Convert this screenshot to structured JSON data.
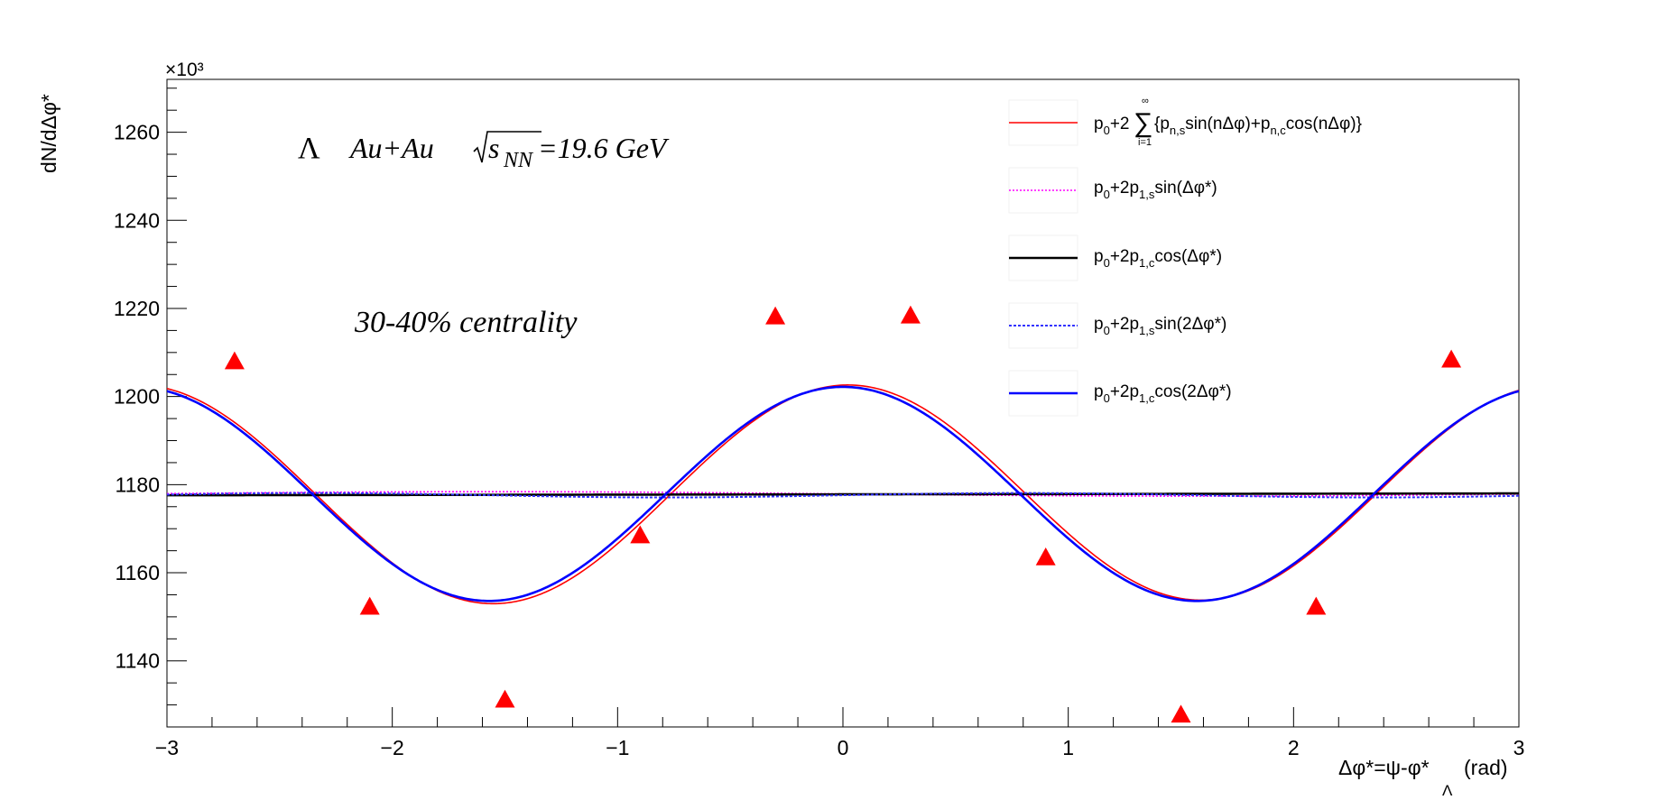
{
  "chart_data": {
    "type": "line",
    "title": "",
    "ylabel": "dN/dΔφ*",
    "xlabel": {
      "main": "Δφ*=ψ-φ*",
      "sub": "Λ",
      "unit": "(rad)"
    },
    "y_multiplier": "×10³",
    "xlim": [
      -3,
      3
    ],
    "ylim": [
      1125,
      1272
    ],
    "x_ticks": [
      -3,
      -2,
      -1,
      0,
      1,
      2,
      3
    ],
    "x_tick_labels": [
      "−3",
      "−2",
      "−1",
      "0",
      "1",
      "2",
      "3"
    ],
    "y_ticks": [
      1140,
      1160,
      1180,
      1200,
      1220,
      1240,
      1260
    ],
    "y_tick_labels": [
      "1140",
      "1160",
      "1180",
      "1200",
      "1220",
      "1240",
      "1260"
    ],
    "grid": false,
    "legend_position": "top-right",
    "annotations": {
      "system": {
        "particle": "Λ",
        "collision": "Au+Au",
        "energy_sym": "s",
        "energy_sub": "NN",
        "energy_val": "=19.6 GeV"
      },
      "centrality": "30-40% centrality"
    },
    "data_points": {
      "name": "",
      "color": "#ff0000",
      "marker": "triangle-up",
      "x": [
        -2.7,
        -2.1,
        -1.5,
        -0.9,
        -0.3,
        0.3,
        0.9,
        1.5,
        2.1,
        2.7
      ],
      "y": [
        1208.0,
        1152.3,
        1131.2,
        1168.5,
        1218.2,
        1218.4,
        1163.5,
        1127.8,
        1152.3,
        1208.4
      ]
    },
    "series": [
      {
        "name": "p0+2Σ{pn,s sin(nΔφ)+pn,c cos(nΔφ)}",
        "color": "#ff0000",
        "style": "solid",
        "width": 1.6,
        "model": "full",
        "p0": 1178.0,
        "p1s": 0.4,
        "p2c": 24.6,
        "p2s": 0.9
      },
      {
        "name": "p0+2p1,s sin(Δφ*)",
        "color": "#ff00ff",
        "style": "dotted",
        "width": 1.6,
        "model": "sin1",
        "p0": 1177.9,
        "amp": -0.5
      },
      {
        "name": "p0+2p1,c cos(Δφ*)",
        "color": "#000000",
        "style": "solid",
        "width": 2.6,
        "model": "cos1",
        "p0": 1177.8,
        "slope": 0.07
      },
      {
        "name": "p0+2p1,s sin(2Δφ*)",
        "color": "#3333ff",
        "style": "dotted",
        "width": 2.0,
        "model": "sin2",
        "p0": 1177.6,
        "amp": 0.5
      },
      {
        "name": "p0+2p1,c cos(2Δφ*)",
        "color": "#0000ff",
        "style": "solid",
        "width": 2.6,
        "model": "cos2",
        "p0": 1177.9,
        "amp": 24.3
      }
    ],
    "legend": [
      {
        "main": "p",
        "parts": [
          {
            "t": "p",
            "s": ""
          },
          {
            "t": "",
            "s": "0"
          },
          {
            "t": "+2",
            "s": ""
          }
        ]
      }
    ]
  },
  "legend_text": {
    "l1": {
      "a": "p",
      "a_sub": "0",
      "b": "+2",
      "sum_top": "∞",
      "sum_bot": "i=1",
      "c": "{p",
      "c_sub": "n,s",
      "d": "sin(nΔφ)+p",
      "d_sub": "n,c",
      "e": "cos(nΔφ)}"
    },
    "l2": {
      "a": "p",
      "a_sub": "0",
      "b": "+2p",
      "b_sub": "1,s",
      "c": "sin(Δφ*)"
    },
    "l3": {
      "a": "p",
      "a_sub": "0",
      "b": "+2p",
      "b_sub": "1,c",
      "c": "cos(Δφ*)"
    },
    "l4": {
      "a": "p",
      "a_sub": "0",
      "b": "+2p",
      "b_sub": "1,s",
      "c": "sin(2Δφ*)"
    },
    "l5": {
      "a": "p",
      "a_sub": "0",
      "b": "+2p",
      "b_sub": "1,c",
      "c": "cos(2Δφ*)"
    }
  }
}
